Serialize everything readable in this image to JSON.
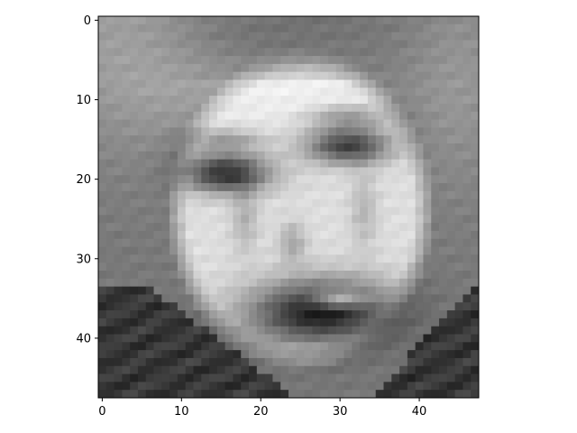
{
  "figure": {
    "background": "#ffffff",
    "axes_color": "#000000"
  },
  "chart_data": {
    "type": "heatmap",
    "colormap": "gray",
    "image_size": {
      "rows": 48,
      "cols": 48
    },
    "value_range": [
      0,
      255
    ],
    "title": "",
    "xlabel": "",
    "ylabel": "",
    "xlim": [
      -0.5,
      47.5
    ],
    "ylim": [
      47.5,
      -0.5
    ],
    "y_inverted": true,
    "grid": false,
    "x_ticks": [
      0,
      10,
      20,
      30,
      40
    ],
    "x_tick_labels": [
      "0",
      "10",
      "20",
      "30",
      "40"
    ],
    "y_ticks": [
      0,
      10,
      20,
      30,
      40
    ],
    "y_tick_labels": [
      "0",
      "10",
      "20",
      "30",
      "40"
    ],
    "subject": "grayscale face photo",
    "features": {
      "background": {
        "left": 120,
        "upper_left": 185,
        "upper_right": 150
      },
      "hair": 105,
      "skin": 222,
      "forehead": 235,
      "eyes": [
        {
          "row": 19.5,
          "col": 15.5,
          "rx": 4.0,
          "ry": 1.6,
          "value": 55
        },
        {
          "row": 16.0,
          "col": 31.0,
          "rx": 3.8,
          "ry": 1.5,
          "value": 70
        }
      ],
      "brows": [
        {
          "row": 15.0,
          "col": 15.5,
          "value": 150
        },
        {
          "row": 12.0,
          "col": 31.0,
          "value": 160
        }
      ],
      "nose": {
        "row": 28.0,
        "col": 26.0,
        "value": 150
      },
      "mouth": {
        "row": 36.5,
        "col": 28.0,
        "rx": 6.5,
        "ry": 2.8,
        "value": 30
      },
      "teeth": {
        "row": 35.0,
        "col": 30.0,
        "value": 225
      },
      "shirt": 55
    }
  }
}
